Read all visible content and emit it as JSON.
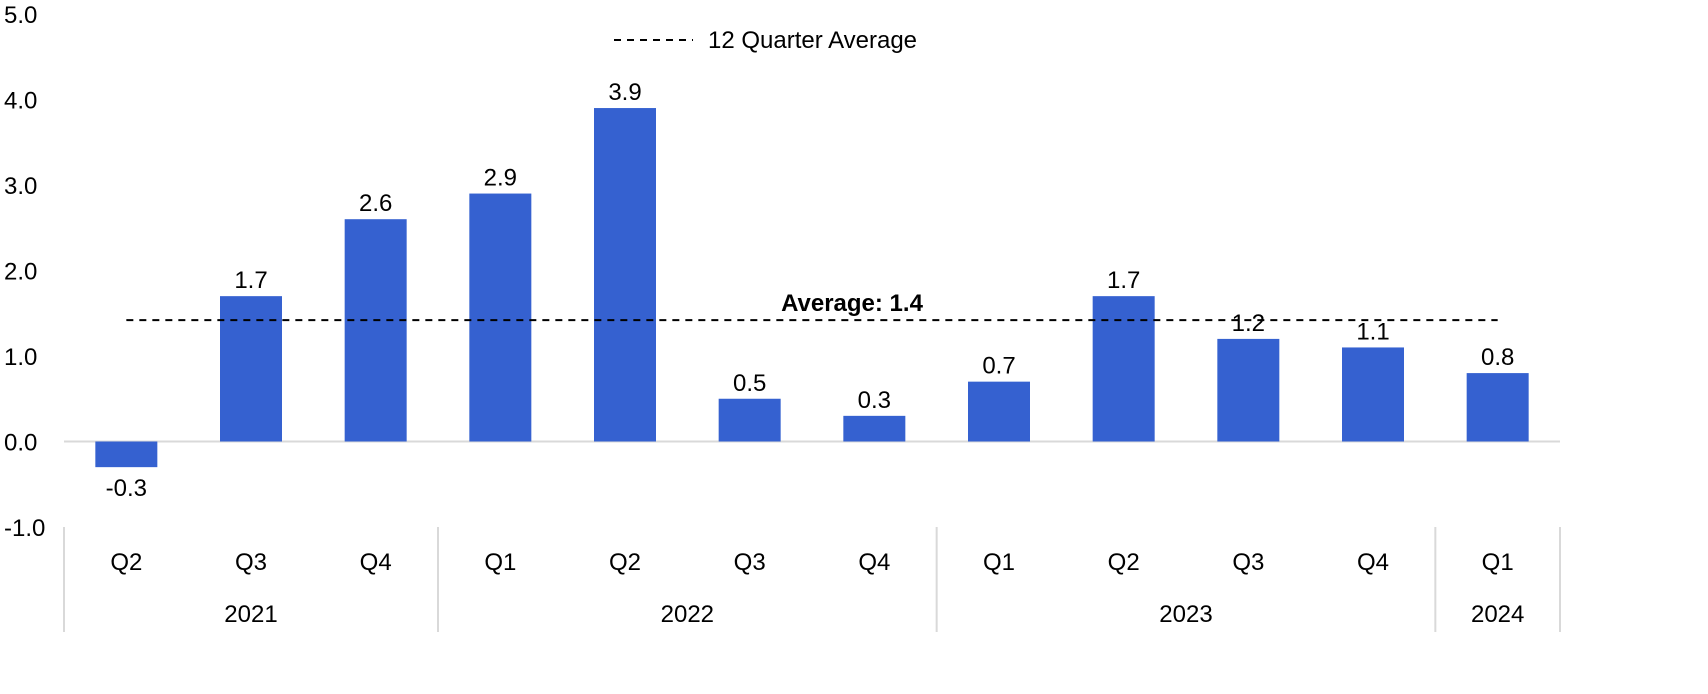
{
  "chart_data": {
    "type": "bar",
    "categories": [
      "Q2",
      "Q3",
      "Q4",
      "Q1",
      "Q2",
      "Q3",
      "Q4",
      "Q1",
      "Q2",
      "Q3",
      "Q4",
      "Q1"
    ],
    "groups": [
      {
        "label": "2021",
        "count": 3
      },
      {
        "label": "2022",
        "count": 4
      },
      {
        "label": "2023",
        "count": 4
      },
      {
        "label": "2024",
        "count": 1
      }
    ],
    "values": [
      -0.3,
      1.7,
      2.6,
      2.9,
      3.9,
      0.5,
      0.3,
      0.7,
      1.7,
      1.2,
      1.1,
      0.8
    ],
    "value_labels": [
      "-0.3",
      "1.7",
      "2.6",
      "2.9",
      "3.9",
      "0.5",
      "0.3",
      "0.7",
      "1.7",
      "1.2",
      "1.1",
      "0.8"
    ],
    "ylim": [
      -1.0,
      5.0
    ],
    "yticks": [
      -1.0,
      0.0,
      1.0,
      2.0,
      3.0,
      4.0,
      5.0
    ],
    "ytick_labels": [
      "-1.0",
      "0.0",
      "1.0",
      "2.0",
      "3.0",
      "4.0",
      "5.0"
    ],
    "average": 1.42,
    "average_label": "Average: 1.4",
    "legend": {
      "entries": [
        "12 Quarter Average"
      ],
      "placement": "top-center"
    },
    "grid": false,
    "title": "",
    "xlabel": "",
    "ylabel": ""
  },
  "colors": {
    "bar": "#3561D0",
    "average_line": "#000000",
    "axis": "#d9d9d9",
    "text": "#000000"
  }
}
